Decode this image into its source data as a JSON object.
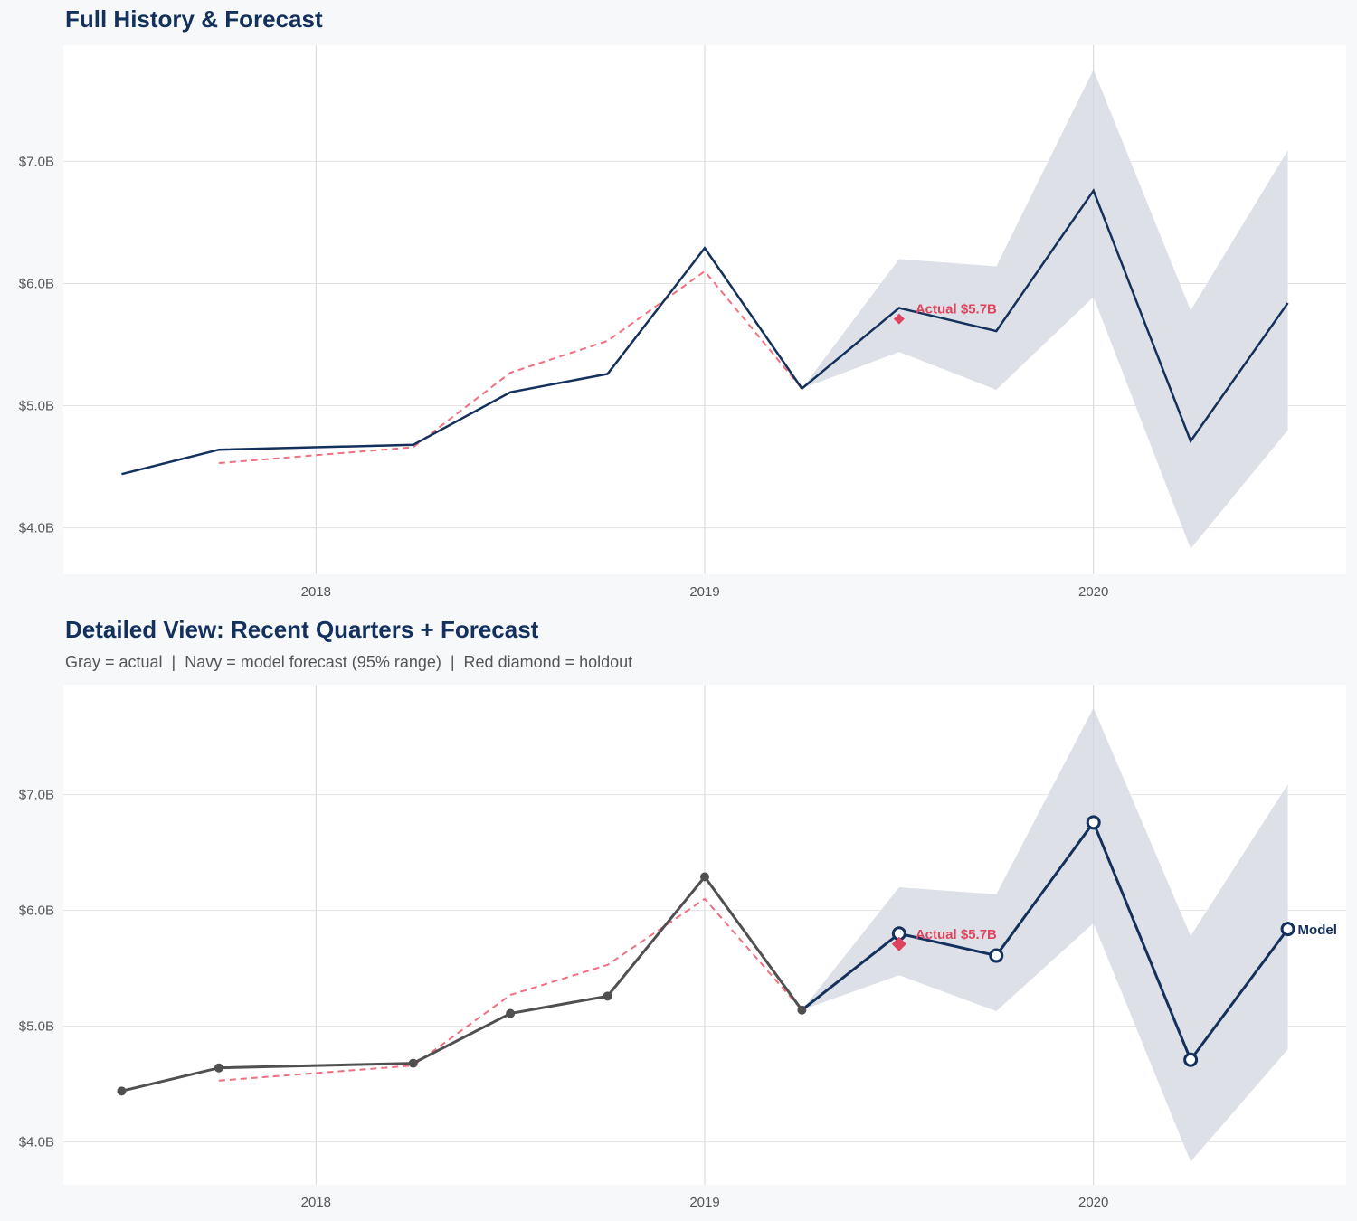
{
  "colors": {
    "actual_top": "#13315c",
    "actual_bottom": "#505050",
    "forecast": "#13315c",
    "band": "#dde1e7",
    "fitted": "#f07080",
    "holdout": "#e0435f",
    "grid": "#e3e3e3",
    "background": "#f7f8fa"
  },
  "chart_data": [
    {
      "type": "line",
      "title": "Full History & Forecast",
      "xlim": [
        2017.35,
        2020.65
      ],
      "ylim": [
        3.62,
        7.95
      ],
      "x_ticks": [
        2018,
        2019,
        2020
      ],
      "x_tick_labels": [
        "2018",
        "2019",
        "2020"
      ],
      "y_ticks": [
        4,
        5,
        6,
        7
      ],
      "y_tick_labels": [
        "$4.0B",
        "$5.0B",
        "$6.0B",
        "$7.0B"
      ],
      "grid": true,
      "markers": false,
      "series": [
        {
          "name": "actual",
          "x": [
            2017.5,
            2017.75,
            2018.25,
            2018.5,
            2018.75,
            2019.0,
            2019.25
          ],
          "values": [
            4.44,
            4.64,
            4.68,
            5.11,
            5.26,
            6.29,
            5.14
          ]
        },
        {
          "name": "fitted",
          "style": "dashed",
          "x": [
            2017.75,
            2018.25,
            2018.5,
            2018.75,
            2019.0,
            2019.25
          ],
          "values": [
            4.53,
            4.66,
            5.27,
            5.53,
            6.1,
            5.14
          ]
        },
        {
          "name": "forecast",
          "x": [
            2019.25,
            2019.5,
            2019.75,
            2020.0,
            2020.25,
            2020.5
          ],
          "values": [
            5.14,
            5.8,
            5.61,
            6.76,
            4.71,
            5.84
          ]
        },
        {
          "name": "forecast_95_range",
          "x": [
            2019.25,
            2019.5,
            2019.75,
            2020.0,
            2020.25,
            2020.5
          ],
          "lower": [
            5.14,
            5.44,
            5.13,
            5.89,
            3.83,
            4.8
          ],
          "upper": [
            5.14,
            6.2,
            6.14,
            7.75,
            5.78,
            7.09
          ]
        }
      ],
      "holdout": {
        "x": 2019.5,
        "value": 5.71,
        "label": "Actual $5.7B"
      }
    },
    {
      "type": "line",
      "title": "Detailed View: Recent Quarters + Forecast",
      "subtitle": "Gray = actual  |  Navy = model forecast (95% range)  |  Red diamond = holdout",
      "xlim": [
        2017.35,
        2020.65
      ],
      "ylim": [
        3.63,
        7.95
      ],
      "x_ticks": [
        2018,
        2019,
        2020
      ],
      "x_tick_labels": [
        "2018",
        "2019",
        "2020"
      ],
      "y_ticks": [
        4,
        5,
        6,
        7
      ],
      "y_tick_labels": [
        "$4.0B",
        "$5.0B",
        "$6.0B",
        "$7.0B"
      ],
      "grid": true,
      "markers": true,
      "series": [
        {
          "name": "actual",
          "x": [
            2017.5,
            2017.75,
            2018.25,
            2018.5,
            2018.75,
            2019.0,
            2019.25
          ],
          "values": [
            4.44,
            4.64,
            4.68,
            5.11,
            5.26,
            6.29,
            5.14
          ]
        },
        {
          "name": "fitted",
          "style": "dashed",
          "x": [
            2017.75,
            2018.25,
            2018.5,
            2018.75,
            2019.0,
            2019.25
          ],
          "values": [
            4.53,
            4.66,
            5.27,
            5.53,
            6.1,
            5.14
          ]
        },
        {
          "name": "forecast",
          "x": [
            2019.25,
            2019.5,
            2019.75,
            2020.0,
            2020.25,
            2020.5
          ],
          "values": [
            5.14,
            5.8,
            5.61,
            6.76,
            4.71,
            5.84
          ]
        },
        {
          "name": "forecast_95_range",
          "x": [
            2019.25,
            2019.5,
            2019.75,
            2020.0,
            2020.25,
            2020.5
          ],
          "lower": [
            5.14,
            5.44,
            5.13,
            5.89,
            3.83,
            4.8
          ],
          "upper": [
            5.14,
            6.2,
            6.14,
            7.75,
            5.78,
            7.09
          ]
        }
      ],
      "holdout": {
        "x": 2019.5,
        "value": 5.71,
        "label": "Actual $5.7B"
      },
      "end_label": "Model"
    }
  ]
}
